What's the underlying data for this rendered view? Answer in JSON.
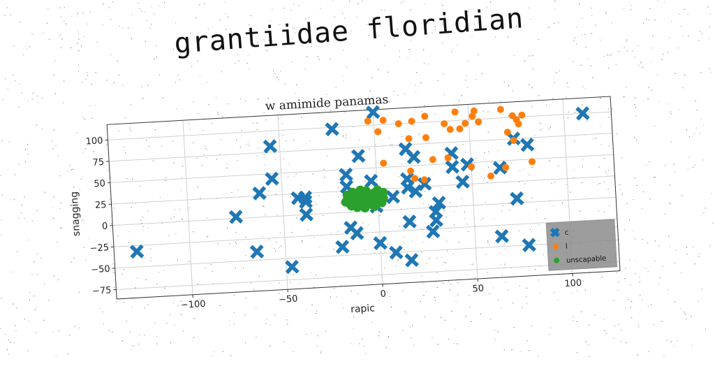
{
  "figure": {
    "title": "grantiidae floridian"
  },
  "chart_data": {
    "type": "scatter",
    "title": "w amimide panamas",
    "xlabel": "rapic",
    "ylabel": "snagging",
    "xlim": [
      -140,
      125
    ],
    "ylim": [
      -86,
      118
    ],
    "xticks": [
      -100,
      -50,
      0,
      50,
      100
    ],
    "xtick_labels": [
      "−100",
      "−50",
      "0",
      "50",
      "100"
    ],
    "yticks": [
      -75,
      -50,
      -25,
      0,
      25,
      50,
      75,
      100
    ],
    "ytick_labels": [
      "−75",
      "−50",
      "−25",
      "0",
      "25",
      "50",
      "75",
      "100"
    ],
    "grid": true,
    "legend_position": "lower-right",
    "series": [
      {
        "name": "c",
        "marker": "x",
        "color": "#1f77b4",
        "points": [
          [
            -128,
            -32
          ],
          [
            -55,
            82
          ],
          [
            -55,
            44
          ],
          [
            -62,
            28
          ],
          [
            -75,
            2
          ],
          [
            -65,
            -40
          ],
          [
            -47,
            -60
          ],
          [
            -42,
            20
          ],
          [
            -38,
            20
          ],
          [
            -38,
            15
          ],
          [
            -38,
            0
          ],
          [
            -22,
            98
          ],
          [
            -16,
            44
          ],
          [
            -16,
            30
          ],
          [
            -20,
            -40
          ],
          [
            -15,
            -18
          ],
          [
            -12,
            -25
          ],
          [
            -9,
            65
          ],
          [
            0,
            115
          ],
          [
            -3,
            35
          ],
          [
            -4,
            12
          ],
          [
            -1,
            5
          ],
          [
            0,
            -38
          ],
          [
            8,
            -50
          ],
          [
            8,
            15
          ],
          [
            16,
            70
          ],
          [
            16,
            35
          ],
          [
            16,
            25
          ],
          [
            20,
            60
          ],
          [
            20,
            20
          ],
          [
            16,
            -15
          ],
          [
            16,
            -60
          ],
          [
            25,
            28
          ],
          [
            28,
            -28
          ],
          [
            30,
            -15
          ],
          [
            30,
            -5
          ],
          [
            32,
            5
          ],
          [
            40,
            62
          ],
          [
            40,
            46
          ],
          [
            48,
            48
          ],
          [
            45,
            28
          ],
          [
            64,
            -38
          ],
          [
            65,
            42
          ],
          [
            73,
            75
          ],
          [
            80,
            67
          ],
          [
            73,
            5
          ],
          [
            78,
            -50
          ],
          [
            110,
            100
          ]
        ]
      },
      {
        "name": "l",
        "marker": "o",
        "color": "#ff7f0e",
        "points": [
          [
            -3,
            105
          ],
          [
            2,
            92
          ],
          [
            5,
            105
          ],
          [
            13,
            100
          ],
          [
            20,
            102
          ],
          [
            27,
            107
          ],
          [
            27,
            82
          ],
          [
            30,
            56
          ],
          [
            37,
            97
          ],
          [
            40,
            90
          ],
          [
            45,
            90
          ],
          [
            43,
            110
          ],
          [
            48,
            96
          ],
          [
            52,
            104
          ],
          [
            53,
            110
          ],
          [
            55,
            97
          ],
          [
            67,
            110
          ],
          [
            73,
            102
          ],
          [
            75,
            97
          ],
          [
            76,
            92
          ],
          [
            78,
            102
          ],
          [
            70,
            83
          ],
          [
            73,
            73
          ],
          [
            68,
            42
          ],
          [
            60,
            33
          ],
          [
            82,
            47
          ],
          [
            50,
            45
          ],
          [
            38,
            57
          ],
          [
            25,
            33
          ],
          [
            20,
            35
          ],
          [
            18,
            44
          ],
          [
            18,
            82
          ],
          [
            4,
            55
          ]
        ]
      },
      {
        "name": "unscapable",
        "marker": "o",
        "color": "#2ca02c",
        "points": [
          [
            -17,
            12
          ],
          [
            -16,
            15
          ],
          [
            -15,
            10
          ],
          [
            -14,
            18
          ],
          [
            -13,
            13
          ],
          [
            -12,
            8
          ],
          [
            -12,
            20
          ],
          [
            -11,
            15
          ],
          [
            -10,
            10
          ],
          [
            -10,
            22
          ],
          [
            -9,
            17
          ],
          [
            -8,
            12
          ],
          [
            -8,
            6
          ],
          [
            -7,
            19
          ],
          [
            -6,
            14
          ],
          [
            -6,
            24
          ],
          [
            -5,
            9
          ],
          [
            -5,
            18
          ],
          [
            -4,
            13
          ],
          [
            -3,
            20
          ],
          [
            -3,
            7
          ],
          [
            -2,
            15
          ],
          [
            -1,
            11
          ],
          [
            -1,
            22
          ],
          [
            0,
            17
          ],
          [
            1,
            12
          ],
          [
            2,
            19
          ],
          [
            2,
            9
          ],
          [
            3,
            14
          ],
          [
            -14,
            7
          ],
          [
            -16,
            20
          ],
          [
            -9,
            25
          ],
          [
            -7,
            4
          ],
          [
            -2,
            5
          ],
          [
            0,
            24
          ],
          [
            3,
            21
          ],
          [
            -13,
            23
          ],
          [
            -11,
            5
          ]
        ]
      }
    ]
  }
}
